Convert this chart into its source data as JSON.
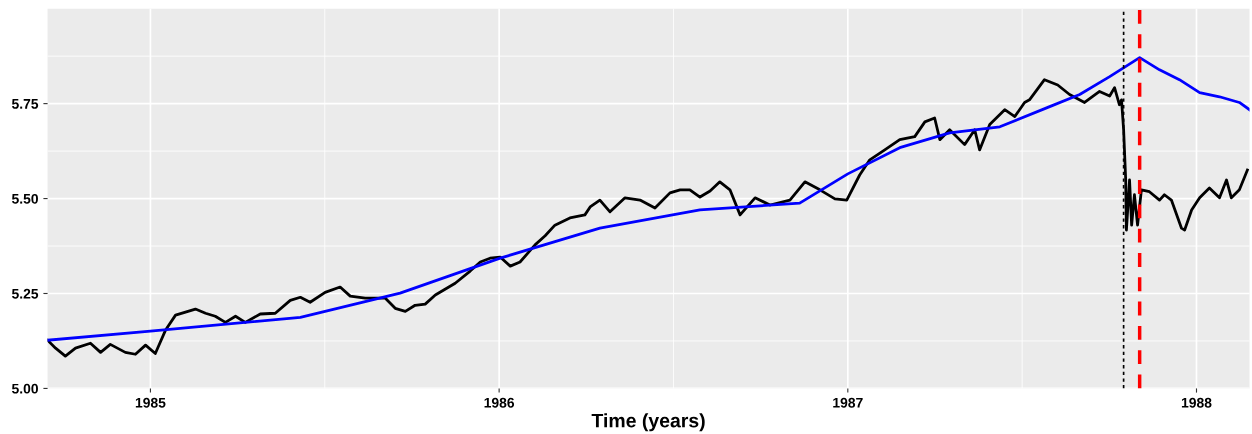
{
  "chart_data": {
    "type": "line",
    "xlabel": "Time (years)",
    "xlim": [
      1984.705,
      1988.152
    ],
    "xticks": [
      1985,
      1986,
      1987,
      1988
    ],
    "ylim": [
      5.0,
      6.0
    ],
    "yticks": [
      {
        "value": 5.0,
        "label": "5.00"
      },
      {
        "value": 5.25,
        "label": "5.25"
      },
      {
        "value": 5.5,
        "label": "5.50"
      },
      {
        "value": 5.75,
        "label": "5.75"
      }
    ],
    "grid": true,
    "marker": "none",
    "line_style": "solid",
    "series": [
      {
        "color": "#000000",
        "x": [
          1984.705,
          1984.728,
          1984.756,
          1984.785,
          1984.828,
          1984.857,
          1984.885,
          1984.928,
          1984.957,
          1984.986,
          1985.014,
          1985.043,
          1985.072,
          1985.129,
          1985.158,
          1985.186,
          1985.215,
          1985.244,
          1985.272,
          1985.315,
          1985.358,
          1985.401,
          1985.43,
          1985.458,
          1985.501,
          1985.544,
          1985.573,
          1985.616,
          1985.673,
          1985.702,
          1985.731,
          1985.759,
          1985.788,
          1985.817,
          1985.874,
          1985.917,
          1985.946,
          1985.974,
          1986.003,
          1986.032,
          1986.06,
          1986.103,
          1986.132,
          1986.16,
          1986.203,
          1986.246,
          1986.261,
          1986.289,
          1986.318,
          1986.361,
          1986.404,
          1986.447,
          1986.49,
          1986.519,
          1986.547,
          1986.576,
          1986.605,
          1986.633,
          1986.662,
          1986.691,
          1986.734,
          1986.777,
          1986.834,
          1986.877,
          1986.92,
          1986.963,
          1986.997,
          1987.034,
          1987.063,
          1987.106,
          1987.149,
          1987.192,
          1987.221,
          1987.249,
          1987.264,
          1987.292,
          1987.335,
          1987.364,
          1987.378,
          1987.407,
          1987.45,
          1987.479,
          1987.507,
          1987.521,
          1987.564,
          1987.602,
          1987.636,
          1987.679,
          1987.722,
          1987.751,
          1987.765,
          1987.779,
          1987.785,
          1987.791,
          1987.797,
          1987.799,
          1987.808,
          1987.814,
          1987.822,
          1987.831,
          1987.842,
          1987.865,
          1987.894,
          1987.908,
          1987.928,
          1987.957,
          1987.966,
          1987.986,
          1988.009,
          1988.037,
          1988.066,
          1988.086,
          1988.1,
          1988.123,
          1988.146
        ],
        "values": [
          5.127,
          5.106,
          5.085,
          5.106,
          5.119,
          5.095,
          5.116,
          5.095,
          5.09,
          5.114,
          5.092,
          5.153,
          5.193,
          5.209,
          5.198,
          5.19,
          5.174,
          5.19,
          5.174,
          5.196,
          5.198,
          5.232,
          5.24,
          5.227,
          5.253,
          5.267,
          5.243,
          5.238,
          5.238,
          5.211,
          5.203,
          5.219,
          5.222,
          5.246,
          5.277,
          5.309,
          5.333,
          5.343,
          5.346,
          5.322,
          5.333,
          5.378,
          5.402,
          5.43,
          5.449,
          5.457,
          5.478,
          5.496,
          5.465,
          5.502,
          5.496,
          5.475,
          5.515,
          5.523,
          5.523,
          5.504,
          5.52,
          5.544,
          5.523,
          5.457,
          5.502,
          5.483,
          5.496,
          5.544,
          5.523,
          5.499,
          5.496,
          5.562,
          5.602,
          5.628,
          5.655,
          5.663,
          5.702,
          5.712,
          5.655,
          5.681,
          5.642,
          5.681,
          5.628,
          5.695,
          5.734,
          5.716,
          5.753,
          5.76,
          5.813,
          5.799,
          5.774,
          5.753,
          5.782,
          5.77,
          5.792,
          5.747,
          5.76,
          5.681,
          5.549,
          5.417,
          5.549,
          5.43,
          5.51,
          5.43,
          5.523,
          5.518,
          5.496,
          5.51,
          5.496,
          5.422,
          5.417,
          5.47,
          5.502,
          5.528,
          5.502,
          5.549,
          5.502,
          5.523,
          5.575
        ]
      },
      {
        "color": "#0000ff",
        "x": [
          1984.705,
          1985.0,
          1985.43,
          1985.716,
          1986.003,
          1986.289,
          1986.576,
          1986.862,
          1987.0,
          1987.149,
          1987.292,
          1987.436,
          1987.579,
          1987.665,
          1987.751,
          1987.837,
          1987.894,
          1987.951,
          1988.009,
          1988.066,
          1988.123,
          1988.152
        ],
        "values": [
          5.127,
          5.151,
          5.187,
          5.251,
          5.343,
          5.422,
          5.47,
          5.488,
          5.565,
          5.634,
          5.673,
          5.689,
          5.742,
          5.774,
          5.821,
          5.871,
          5.839,
          5.813,
          5.779,
          5.768,
          5.753,
          5.734
        ]
      }
    ],
    "ref_lines": [
      {
        "axis": "x",
        "value": 1987.791,
        "color": "#000000",
        "line_style": "dotted"
      },
      {
        "axis": "x",
        "value": 1987.837,
        "color": "#ff0000",
        "line_style": "dashed"
      }
    ]
  }
}
